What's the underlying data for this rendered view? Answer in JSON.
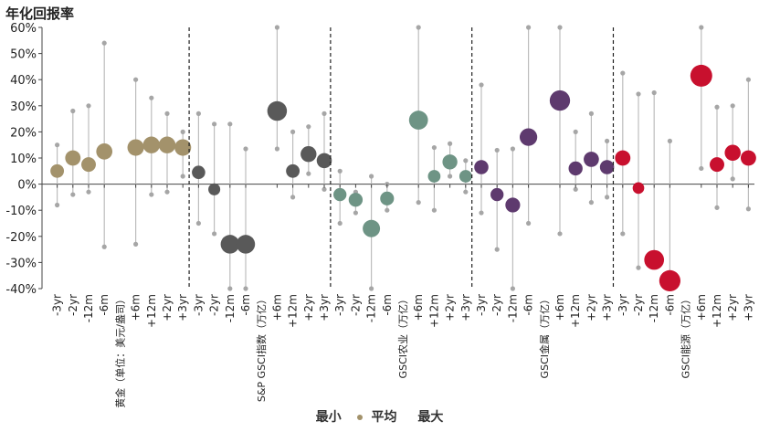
{
  "chart_data": {
    "type": "scatter",
    "title": "年化回报率",
    "ylim": [
      -40,
      60
    ],
    "y_ticks": [
      "60%",
      "50%",
      "40%",
      "30%",
      "20%",
      "10%",
      "0%",
      "-10%",
      "-20%",
      "-30%",
      "-40%"
    ],
    "legend": {
      "min": "最小",
      "avg": "平均",
      "max": "最大"
    },
    "grid": false,
    "groups": [
      {
        "name": "黄金（单位：美元/盎司）",
        "color": "#a3926b",
        "light_color": "#a3926b",
        "points": [
          {
            "period": "-3yr",
            "min": -8,
            "avg": 5,
            "max": 15
          },
          {
            "period": "-2yr",
            "min": -4,
            "avg": 10,
            "max": 28
          },
          {
            "period": "-12m",
            "min": -3,
            "avg": 7.5,
            "max": 30
          },
          {
            "period": "-6m",
            "min": -24,
            "avg": 12.5,
            "max": 54
          },
          {
            "period": "+6m",
            "min": -23,
            "avg": 14,
            "max": 40
          },
          {
            "period": "+12m",
            "min": -4,
            "avg": 15,
            "max": 33
          },
          {
            "period": "+2yr",
            "min": -3,
            "avg": 15,
            "max": 27
          },
          {
            "period": "+3yr",
            "min": 3,
            "avg": 14,
            "max": 20
          }
        ]
      },
      {
        "name": "S&P GSCI指数（万亿）",
        "color": "#595959",
        "light_color": "#595959",
        "points": [
          {
            "period": "-3yr",
            "min": -15,
            "avg": 4.5,
            "max": 27
          },
          {
            "period": "-2yr",
            "min": -19,
            "avg": -2,
            "max": 23
          },
          {
            "period": "-12m",
            "min": -40,
            "avg": -23,
            "max": 23
          },
          {
            "period": "-6m",
            "min": -40,
            "avg": -23,
            "max": 13.5
          },
          {
            "period": "+6m",
            "min": 13.5,
            "avg": 28,
            "max": 60
          },
          {
            "period": "+12m",
            "min": -5,
            "avg": 5,
            "max": 20
          },
          {
            "period": "+2yr",
            "min": 4,
            "avg": 11.5,
            "max": 22
          },
          {
            "period": "+3yr",
            "min": -2,
            "avg": 9,
            "max": 27
          }
        ]
      },
      {
        "name": "GSCI农业（万亿）",
        "color": "#6e9485",
        "light_color": "#6e9485",
        "points": [
          {
            "period": "-3yr",
            "min": -15,
            "avg": -4,
            "max": 5
          },
          {
            "period": "-2yr",
            "min": -11,
            "avg": -6,
            "max": -3
          },
          {
            "period": "-12m",
            "min": -40,
            "avg": -17,
            "max": 3
          },
          {
            "period": "-6m",
            "min": -10,
            "avg": -5.5,
            "max": 0
          },
          {
            "period": "+6m",
            "min": -7,
            "avg": 24.5,
            "max": 60
          },
          {
            "period": "+12m",
            "min": -10,
            "avg": 3,
            "max": 14
          },
          {
            "period": "+2yr",
            "min": 3,
            "avg": 8.5,
            "max": 15.5
          },
          {
            "period": "+3yr",
            "min": -3,
            "avg": 3,
            "max": 9
          }
        ]
      },
      {
        "name": "GSCI金属（万亿）",
        "color": "#5e3a6e",
        "light_color": "#5e3a6e",
        "points": [
          {
            "period": "-3yr",
            "min": -11,
            "avg": 6.5,
            "max": 38
          },
          {
            "period": "-2yr",
            "min": -25,
            "avg": -4,
            "max": 13
          },
          {
            "period": "-12m",
            "min": -40,
            "avg": -8,
            "max": 13.5
          },
          {
            "period": "-6m",
            "min": -15,
            "avg": 18,
            "max": 60
          },
          {
            "period": "+6m",
            "min": -19,
            "avg": 32,
            "max": 60
          },
          {
            "period": "+12m",
            "min": -2,
            "avg": 6,
            "max": 20
          },
          {
            "period": "+2yr",
            "min": -7,
            "avg": 9.5,
            "max": 27
          },
          {
            "period": "+3yr",
            "min": -5,
            "avg": 6.5,
            "max": 16.5
          }
        ]
      },
      {
        "name": "GSCI能源（万亿）",
        "color": "#c8102e",
        "light_color": "#c8102e",
        "points": [
          {
            "period": "-3yr",
            "min": -19,
            "avg": 10,
            "max": 42.5
          },
          {
            "period": "-2yr",
            "min": -32,
            "avg": -1.5,
            "max": 34.5
          },
          {
            "period": "-12m",
            "min": -30,
            "avg": -29,
            "max": 35
          },
          {
            "period": "-6m",
            "min": -37,
            "avg": -37,
            "max": 16.5
          },
          {
            "period": "+6m",
            "min": 6,
            "avg": 41.5,
            "max": 60
          },
          {
            "period": "+12m",
            "min": -9,
            "avg": 7.5,
            "max": 29.5
          },
          {
            "period": "+2yr",
            "min": 2,
            "avg": 12,
            "max": 30
          },
          {
            "period": "+3yr",
            "min": -9.5,
            "avg": 10,
            "max": 40
          }
        ]
      }
    ]
  }
}
